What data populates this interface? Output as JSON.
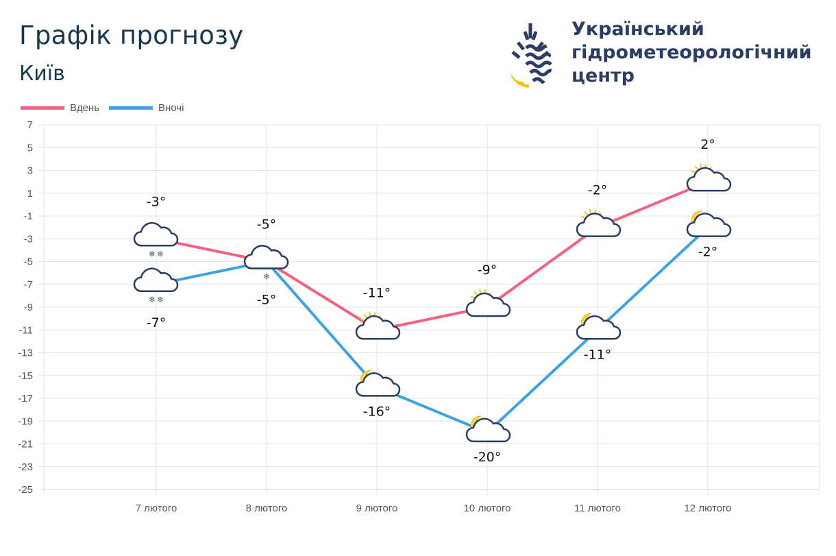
{
  "header": {
    "title": "Графік прогнозу",
    "city": "Київ"
  },
  "organization": {
    "line1": "Український",
    "line2": "гідрометеорологічний",
    "line3": "центр"
  },
  "legend": [
    {
      "label": "Вдень",
      "color": "#f7607f"
    },
    {
      "label": "Вночі",
      "color": "#3ba3e3"
    }
  ],
  "chart_data": {
    "type": "line",
    "categories": [
      "7 лютого",
      "8 лютого",
      "9 лютого",
      "10 лютого",
      "11 лютого",
      "12 лютого"
    ],
    "series": [
      {
        "name": "Вдень",
        "color": "#f7607f",
        "values": [
          -3,
          -5,
          -11,
          -9,
          -2,
          2
        ],
        "labels": [
          "-3°",
          "-5°",
          "-11°",
          "-9°",
          "-2°",
          "2°"
        ],
        "icons": [
          "cloud-snow",
          "cloud-snow",
          "partly-sunny",
          "partly-sunny",
          "partly-sunny",
          "partly-sunny"
        ]
      },
      {
        "name": "Вночі",
        "color": "#3ba3e3",
        "values": [
          -7,
          -5,
          -16,
          -20,
          -11,
          -2
        ],
        "labels": [
          "-7°",
          "-5°",
          "-16°",
          "-20°",
          "-11°",
          "-2°"
        ],
        "icons": [
          "cloud-snow",
          "cloud-snow",
          "partly-moon",
          "partly-moon",
          "partly-moon",
          "partly-moon"
        ]
      }
    ],
    "yticks": [
      "7",
      "5",
      "3",
      "1",
      "-1",
      "-3",
      "-5",
      "-7",
      "-9",
      "-11",
      "-13",
      "-15",
      "-17",
      "-19",
      "-21",
      "-23",
      "-25"
    ],
    "ylim": [
      -25,
      7
    ],
    "grid": true,
    "legend_position": "top-left"
  }
}
